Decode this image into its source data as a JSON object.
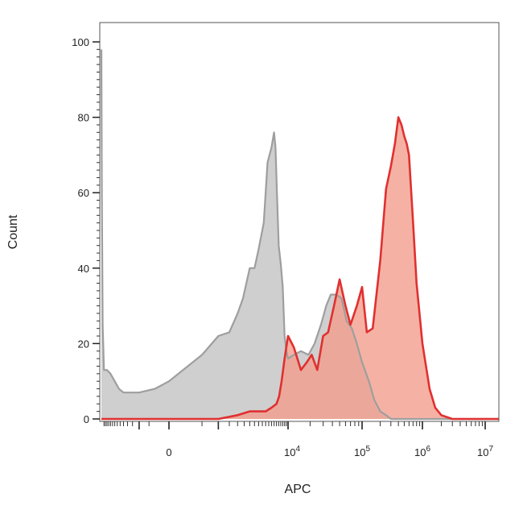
{
  "chart_data": {
    "type": "area",
    "title": "",
    "xlabel": "APC",
    "ylabel": "Count",
    "xscale": "biexponential (linear near 0, log above 10^4)",
    "ylim": [
      0,
      100
    ],
    "yticks": [
      "0",
      "20",
      "40",
      "60",
      "80",
      "100"
    ],
    "xtick_labels": [
      {
        "base": "0",
        "exp": ""
      },
      {
        "base": "10",
        "exp": "4"
      },
      {
        "base": "10",
        "exp": "5"
      },
      {
        "base": "10",
        "exp": "6"
      },
      {
        "base": "10",
        "exp": "7"
      }
    ],
    "grid": false,
    "legend": "none",
    "series": [
      {
        "color": "#9e9e9e",
        "fill": "#cfcfcf",
        "x": [
          -8000,
          -7800,
          -7500,
          -7000,
          -6000,
          -5000,
          -4000,
          -3200,
          -2500,
          -1800,
          -1000,
          -300,
          0,
          500,
          1000,
          1500,
          2000,
          2400,
          3000,
          3500,
          4000,
          4700,
          5300,
          6000,
          6500,
          6800,
          7100,
          7500,
          8000,
          8500,
          9000,
          9500,
          10000,
          12000,
          15000,
          19000,
          23000,
          28000,
          33000,
          38000,
          45000,
          53000,
          62000,
          73000,
          85000,
          100000,
          130000,
          160000,
          200000,
          250000,
          300000,
          400000,
          500000,
          600000,
          800000,
          1000000,
          2000000,
          5000000,
          10000000
        ],
        "y": [
          98,
          60,
          25,
          13,
          13,
          12,
          10,
          8,
          7,
          7,
          7,
          8,
          10,
          17,
          22,
          23,
          28,
          32,
          40,
          40,
          45,
          52,
          68,
          72,
          76,
          72,
          60,
          46,
          41,
          35,
          22,
          18,
          16,
          17,
          18,
          17,
          20,
          25,
          30,
          33,
          33,
          32,
          26,
          24,
          20,
          15,
          10,
          5,
          2,
          1,
          0,
          0,
          0,
          0,
          0,
          0,
          0,
          0,
          0
        ]
      },
      {
        "color": "#e03030",
        "fill": "#f29c8a",
        "x": [
          -8000,
          -6000,
          -3000,
          -1000,
          0,
          1000,
          2000,
          3000,
          4000,
          5000,
          6000,
          7000,
          7600,
          8200,
          9000,
          10000,
          12000,
          15000,
          18000,
          21000,
          25000,
          30000,
          35000,
          42000,
          50000,
          60000,
          70000,
          85000,
          100000,
          120000,
          150000,
          200000,
          250000,
          300000,
          350000,
          400000,
          450000,
          500000,
          550000,
          600000,
          700000,
          800000,
          1000000,
          1300000,
          1600000,
          2000000,
          3000000,
          5000000,
          10000000
        ],
        "y": [
          0,
          0,
          0,
          0,
          0,
          0,
          1,
          2,
          2,
          2,
          3,
          4,
          6,
          10,
          16,
          22,
          19,
          13,
          15,
          17,
          13,
          22,
          23,
          30,
          37,
          30,
          25,
          30,
          35,
          23,
          24,
          42,
          61,
          67,
          73,
          80,
          78,
          75,
          73,
          70,
          52,
          36,
          20,
          8,
          3,
          1,
          0,
          0,
          0
        ]
      }
    ]
  }
}
